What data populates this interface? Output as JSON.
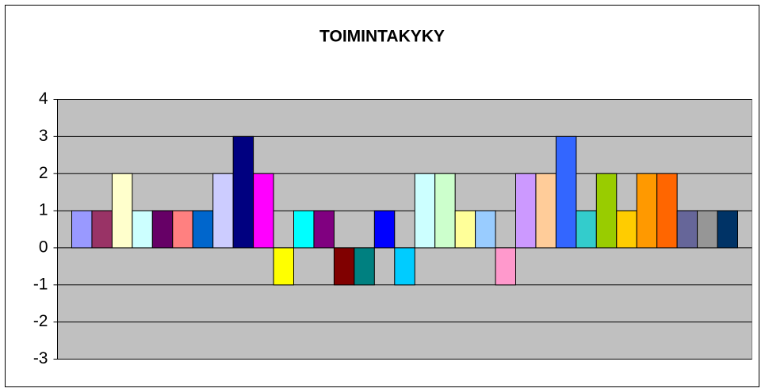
{
  "chart_data": {
    "type": "bar",
    "title": "TOIMINTAKYKY",
    "values": [
      1,
      1,
      2,
      1,
      1,
      1,
      1,
      2,
      3,
      2,
      -1,
      1,
      1,
      -1,
      -1,
      1,
      -1,
      2,
      2,
      1,
      1,
      -1,
      2,
      2,
      3,
      1,
      2,
      1,
      2,
      2,
      1,
      1,
      1
    ],
    "colors": [
      "#9999ff",
      "#993366",
      "#ffffcc",
      "#ccffff",
      "#660066",
      "#ff8080",
      "#0066cc",
      "#ccccff",
      "#000080",
      "#ff00ff",
      "#ffff00",
      "#00ffff",
      "#800080",
      "#800000",
      "#008080",
      "#0000ff",
      "#00ccff",
      "#ccffff",
      "#ccffcc",
      "#ffff99",
      "#99ccff",
      "#ff99cc",
      "#cc99ff",
      "#ffcc99",
      "#3366ff",
      "#33cccc",
      "#99cc00",
      "#ffcc00",
      "#ff9900",
      "#ff6600",
      "#666699",
      "#969696",
      "#003366"
    ],
    "ylim": [
      -3,
      4
    ],
    "yticks": [
      -3,
      -2,
      -1,
      0,
      1,
      2,
      3,
      4
    ],
    "grid": true
  }
}
